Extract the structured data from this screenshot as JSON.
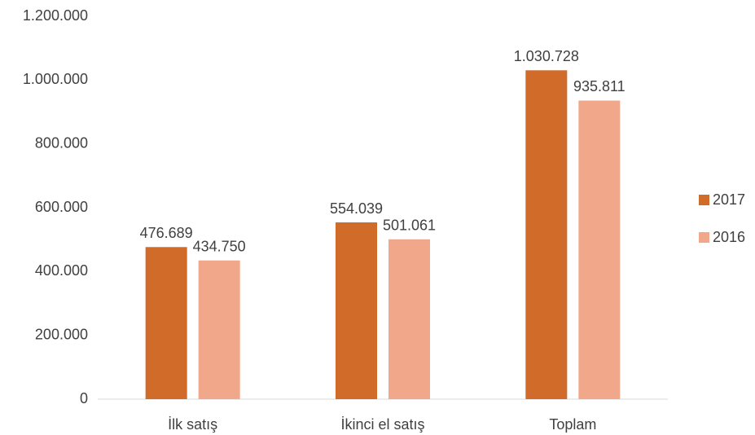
{
  "chart_data": {
    "type": "bar",
    "categories": [
      "İlk satış",
      "İkinci el satış",
      "Toplam"
    ],
    "series": [
      {
        "name": "2017",
        "color": "#d06b2a",
        "values": [
          476689,
          554039,
          1030728
        ],
        "value_labels": [
          "476.689",
          "554.039",
          "1.030.728"
        ]
      },
      {
        "name": "2016",
        "color": "#f1a78a",
        "values": [
          434750,
          501061,
          935811
        ],
        "value_labels": [
          "434.750",
          "501.061",
          "935.811"
        ]
      }
    ],
    "ylim": [
      0,
      1200000
    ],
    "yticks": [
      0,
      {
        "value": 200000,
        "label": "200.000"
      },
      {
        "value": 400000,
        "label": "400.000"
      },
      {
        "value": 600000,
        "label": "600.000"
      },
      {
        "value": 800000,
        "label": "800.000"
      },
      {
        "value": 1000000,
        "label": "1.000.000"
      },
      {
        "value": 1200000,
        "label": "1.200.000"
      }
    ],
    "grid": false,
    "legend": "right"
  }
}
